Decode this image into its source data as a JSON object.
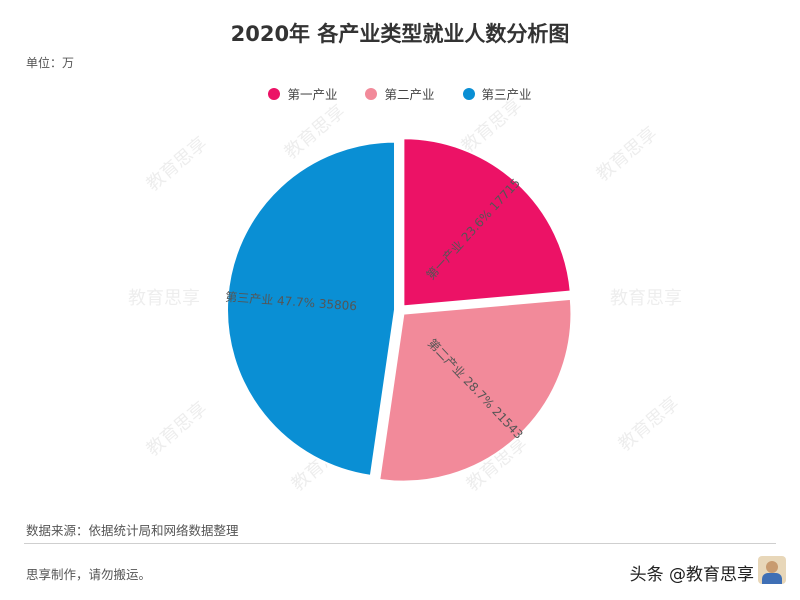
{
  "title": "2020年 各产业类型就业人数分析图",
  "unit_label": "单位：万",
  "watermark_text": "教育思享",
  "source": "数据来源：依据统计局和网络数据整理",
  "footer_note": "思享制作，请勿搬运。",
  "brand": "头条 @教育思享",
  "chart_data": {
    "type": "pie",
    "title": "2020年 各产业类型就业人数分析图",
    "unit": "万",
    "legend_position": "top-center",
    "slices": [
      {
        "name": "第一产业",
        "value": 17715,
        "percent": "23.6%",
        "color": "#EC1266"
      },
      {
        "name": "第二产业",
        "value": 21543,
        "percent": "28.7%",
        "color": "#F28A9A"
      },
      {
        "name": "第三产业",
        "value": 35806,
        "percent": "47.7%",
        "color": "#0A8FD4"
      }
    ]
  }
}
